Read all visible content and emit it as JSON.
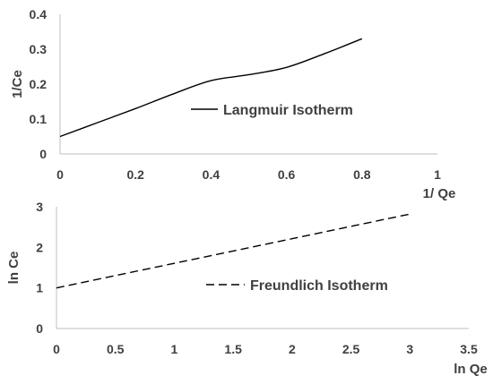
{
  "chart_data": [
    {
      "type": "line",
      "xlabel": "1/ Qe",
      "ylabel": "1/Ce",
      "xlim": [
        0,
        1
      ],
      "ylim": [
        0,
        0.4
      ],
      "xticks": [
        "0",
        "0.2",
        "0.4",
        "0.6",
        "0.8",
        "1"
      ],
      "yticks": [
        "0",
        "0.1",
        "0.2",
        "0.3",
        "0.4"
      ],
      "grid": false,
      "legend_position": "center",
      "series": [
        {
          "name": "Langmuir Isotherm",
          "line_style": "solid",
          "color": "#000000",
          "x": [
            0,
            0.1,
            0.2,
            0.3,
            0.4,
            0.5,
            0.6,
            0.7,
            0.8
          ],
          "y": [
            0.05,
            0.09,
            0.13,
            0.172,
            0.21,
            0.227,
            0.248,
            0.287,
            0.33
          ]
        }
      ]
    },
    {
      "type": "line",
      "xlabel": "ln Qe",
      "ylabel": "ln Ce",
      "xlim": [
        0,
        3.5
      ],
      "ylim": [
        0,
        3
      ],
      "xticks": [
        "0",
        "0.5",
        "1",
        "1.5",
        "2",
        "2.5",
        "3",
        "3.5"
      ],
      "yticks": [
        "0",
        "1",
        "2",
        "3"
      ],
      "grid": false,
      "legend_position": "center",
      "series": [
        {
          "name": "Freundlich Isotherm",
          "line_style": "dashed",
          "color": "#000000",
          "x": [
            0,
            3
          ],
          "y": [
            1.0,
            2.82
          ]
        }
      ]
    }
  ]
}
